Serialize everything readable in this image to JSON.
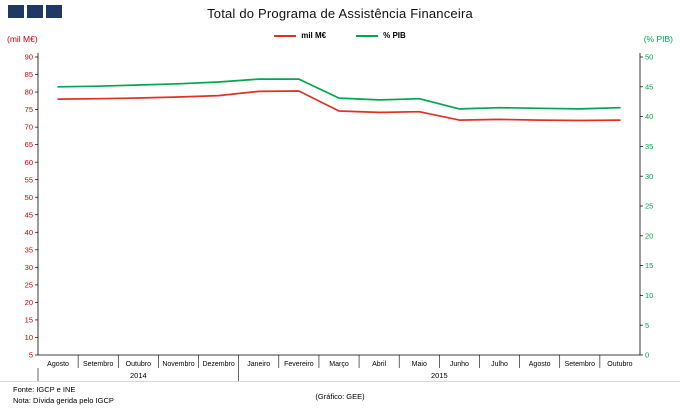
{
  "chart_data": {
    "type": "line",
    "title": "Total do Programa de Assistência Financeira",
    "categories": [
      "Agosto",
      "Setembro",
      "Outubro",
      "Novembro",
      "Dezembro",
      "Janeiro",
      "Fevereiro",
      "Março",
      "Abril",
      "Maio",
      "Junho",
      "Julho",
      "Agosto",
      "Setembro",
      "Outubro"
    ],
    "year_groups": [
      {
        "label": "2014",
        "start": 0,
        "end": 4
      },
      {
        "label": "2015",
        "start": 5,
        "end": 14
      }
    ],
    "series": [
      {
        "name": "mil M€",
        "axis": "left",
        "color": "#e03127",
        "values": [
          78.0,
          78.1,
          78.3,
          78.6,
          79.0,
          80.2,
          80.3,
          74.6,
          74.2,
          74.4,
          72.0,
          72.2,
          72.0,
          71.9,
          72.0
        ]
      },
      {
        "name": "% PIB",
        "axis": "right",
        "color": "#00a550",
        "values": [
          45.0,
          45.1,
          45.3,
          45.5,
          45.8,
          46.3,
          46.3,
          43.1,
          42.8,
          43.0,
          41.3,
          41.5,
          41.4,
          41.3,
          41.5
        ]
      }
    ],
    "left_axis": {
      "label": "(mil M€)",
      "min": 5,
      "max": 90,
      "step": 5,
      "color": "#cc0000"
    },
    "right_axis": {
      "label": "(% PIB)",
      "min": 0,
      "max": 50,
      "step": 5,
      "color": "#00a550"
    },
    "legend_position": "top-center",
    "grid": false
  },
  "footer": {
    "source": "Fonte: IGCP e INE",
    "note": "Nota: Dívida gerida pelo IGCP",
    "credit": "(Gráfico: GEE)"
  }
}
